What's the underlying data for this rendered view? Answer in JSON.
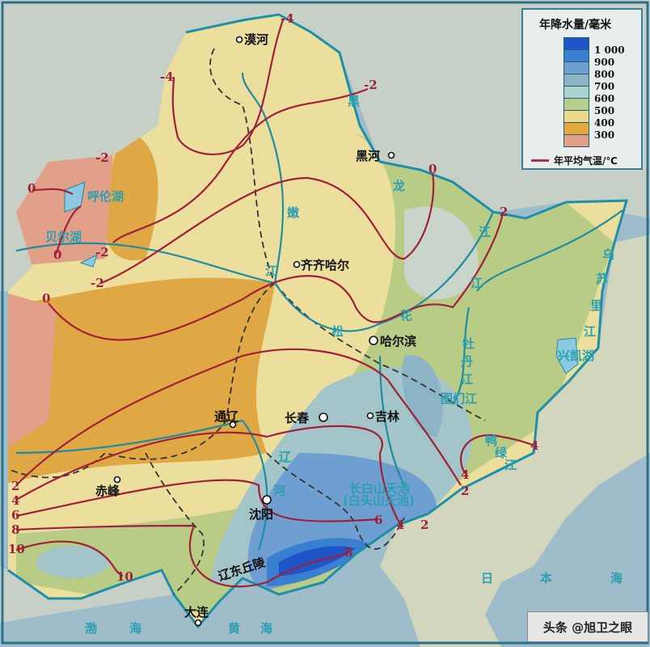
{
  "legend": {
    "title": "年降水量/毫米",
    "classes": [
      {
        "label": "1 000",
        "color": "#1e55c8"
      },
      {
        "label": "900",
        "color": "#3a7fd0"
      },
      {
        "label": "800",
        "color": "#6f9fd0"
      },
      {
        "label": "700",
        "color": "#8db4c4"
      },
      {
        "label": "600",
        "color": "#a9d4d2"
      },
      {
        "label": "500",
        "color": "#b6cd90"
      },
      {
        "label": "400",
        "color": "#ecd88a"
      },
      {
        "label": "300",
        "color": "#e2aa3c"
      },
      {
        "label": "",
        "color": "#e3a088"
      }
    ],
    "isotherm_label": "年平均气温/℃",
    "isotherm_color": "#a0203a"
  },
  "places": {
    "mohe": "漠河",
    "heihe": "黑河",
    "qiqihar": "齐齐哈尔",
    "harbin": "哈尔滨",
    "changchun": "长春",
    "jilin": "吉林",
    "tongliao": "通辽",
    "chifeng": "赤峰",
    "shenyang": "沈阳",
    "dalian": "大连",
    "liaodong": "辽东丘陵"
  },
  "water": {
    "hulun": "呼伦湖",
    "buir": "贝尔湖",
    "xingkai": "兴凯湖",
    "heilongjiang": [
      "黑",
      "龙",
      "江"
    ],
    "nenjiang": [
      "嫩",
      "江"
    ],
    "songhua": [
      "松",
      "花",
      "江"
    ],
    "wusuli": [
      "乌",
      "苏",
      "里",
      "江"
    ],
    "mudan": [
      "牡",
      "丹",
      "江"
    ],
    "tumen": "图们江",
    "yalu": [
      "鸭",
      "绿",
      "江"
    ],
    "liaohe": [
      "辽",
      "河"
    ],
    "tianchi": "长白山天池",
    "tianchi2": "(白头山天池)",
    "bohai": [
      "渤",
      "海"
    ],
    "huanghai": [
      "黄",
      "海"
    ],
    "japansea": [
      "日",
      "本",
      "海"
    ]
  },
  "isotherms": {
    "m4a": "-4",
    "m4b": "-4",
    "m2a": "-2",
    "m2b": "-2",
    "m2c": "-2",
    "m2d": "-2",
    "z1": "0",
    "z2": "0",
    "z3": "0",
    "z4": "0",
    "p2a": "2",
    "p2b": "2",
    "p2c": "2",
    "p2d": "2",
    "p4a": "4",
    "p4b": "4",
    "p4c": "4",
    "p4d": "4",
    "p6a": "6",
    "p6b": "6",
    "p8a": "8",
    "p8b": "8",
    "p10a": "10",
    "p10b": "10"
  },
  "watermark": "头条 @旭卫之眼"
}
